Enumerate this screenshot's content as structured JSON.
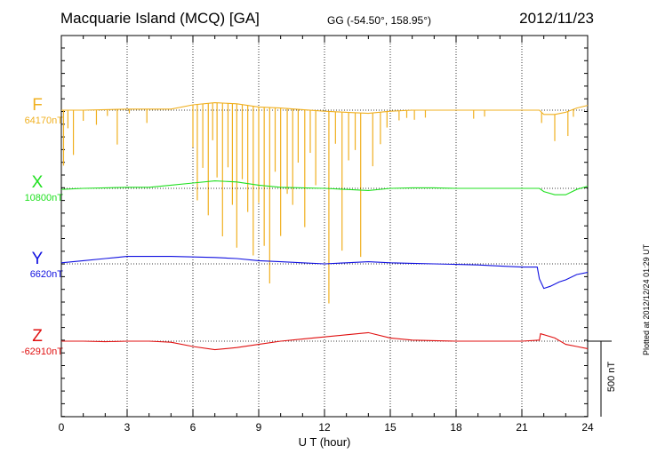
{
  "header": {
    "station": "Macquarie Island (MCQ)  [GA]",
    "coords": "GG (-54.50°, 158.95°)",
    "date": "2012/11/23",
    "plotted": "Plotted at 2012/12/24 01:29 UT"
  },
  "chart_data": {
    "type": "line",
    "xlabel": "U T (hour)",
    "xlim": [
      0,
      24
    ],
    "xticks": [
      0,
      3,
      6,
      9,
      12,
      15,
      18,
      21,
      24
    ],
    "x_tick_labels": [
      "0",
      "3",
      "6",
      "9",
      "12",
      "15",
      "18",
      "21",
      "24"
    ],
    "scale_bar": {
      "label": "500 nT",
      "nT": 500
    },
    "grid": true,
    "series": [
      {
        "name": "F",
        "baseline_label": "64170nT",
        "baseline_nT": 64170,
        "color": "#f0b020",
        "x": [
          0,
          1,
          2,
          3,
          4,
          5,
          6,
          7,
          8,
          9,
          10,
          11,
          12,
          13,
          14,
          15,
          16,
          17,
          18,
          19,
          20,
          21,
          21.8,
          22,
          22.5,
          23,
          23.5,
          24
        ],
        "y": [
          64170,
          64170,
          64175,
          64180,
          64180,
          64180,
          64220,
          64240,
          64230,
          64200,
          64190,
          64175,
          64160,
          64150,
          64140,
          64160,
          64170,
          64170,
          64170,
          64170,
          64170,
          64170,
          64170,
          64130,
          64130,
          64150,
          64190,
          64215
        ],
        "spikes": [
          {
            "x": 0.1,
            "depth": 520
          },
          {
            "x": 0.3,
            "depth": 170
          },
          {
            "x": 0.55,
            "depth": 420
          },
          {
            "x": 1.0,
            "depth": 100
          },
          {
            "x": 1.6,
            "depth": 140
          },
          {
            "x": 2.1,
            "depth": 60
          },
          {
            "x": 2.55,
            "depth": 330
          },
          {
            "x": 3.1,
            "depth": 40
          },
          {
            "x": 3.9,
            "depth": 130
          },
          {
            "x": 6.0,
            "depth": 400
          },
          {
            "x": 6.2,
            "depth": 900
          },
          {
            "x": 6.45,
            "depth": 600
          },
          {
            "x": 6.7,
            "depth": 1050
          },
          {
            "x": 6.9,
            "depth": 350
          },
          {
            "x": 7.1,
            "depth": 700
          },
          {
            "x": 7.35,
            "depth": 1250
          },
          {
            "x": 7.6,
            "depth": 600
          },
          {
            "x": 7.8,
            "depth": 950
          },
          {
            "x": 8.0,
            "depth": 1350
          },
          {
            "x": 8.25,
            "depth": 700
          },
          {
            "x": 8.5,
            "depth": 1000
          },
          {
            "x": 8.75,
            "depth": 1400
          },
          {
            "x": 9.0,
            "depth": 900
          },
          {
            "x": 9.25,
            "depth": 1300
          },
          {
            "x": 9.5,
            "depth": 1650
          },
          {
            "x": 9.75,
            "depth": 600
          },
          {
            "x": 10.0,
            "depth": 1200
          },
          {
            "x": 10.3,
            "depth": 800
          },
          {
            "x": 10.55,
            "depth": 900
          },
          {
            "x": 10.8,
            "depth": 500
          },
          {
            "x": 11.1,
            "depth": 1100
          },
          {
            "x": 11.35,
            "depth": 400
          },
          {
            "x": 11.6,
            "depth": 700
          },
          {
            "x": 12.2,
            "depth": 1800
          },
          {
            "x": 12.5,
            "depth": 300
          },
          {
            "x": 12.8,
            "depth": 1300
          },
          {
            "x": 13.1,
            "depth": 450
          },
          {
            "x": 13.4,
            "depth": 350
          },
          {
            "x": 13.65,
            "depth": 1350
          },
          {
            "x": 14.2,
            "depth": 500
          },
          {
            "x": 14.55,
            "depth": 300
          },
          {
            "x": 14.85,
            "depth": 150
          },
          {
            "x": 15.4,
            "depth": 90
          },
          {
            "x": 15.75,
            "depth": 70
          },
          {
            "x": 16.1,
            "depth": 90
          },
          {
            "x": 16.6,
            "depth": 70
          },
          {
            "x": 18.8,
            "depth": 80
          },
          {
            "x": 19.3,
            "depth": 60
          },
          {
            "x": 21.9,
            "depth": 100
          },
          {
            "x": 22.5,
            "depth": 250
          },
          {
            "x": 23.1,
            "depth": 230
          },
          {
            "x": 23.35,
            "depth": 70
          }
        ]
      },
      {
        "name": "X",
        "baseline_label": "10800nT",
        "baseline_nT": 10800,
        "color": "#20e020",
        "x": [
          0,
          1,
          2,
          3,
          4,
          5,
          6,
          7,
          8,
          9,
          10,
          11,
          12,
          13,
          14,
          15,
          16,
          17,
          18,
          19,
          20,
          21,
          21.8,
          22,
          22.5,
          23,
          23.5,
          24
        ],
        "y": [
          10790,
          10800,
          10805,
          10810,
          10810,
          10830,
          10850,
          10870,
          10860,
          10830,
          10810,
          10805,
          10800,
          10790,
          10780,
          10800,
          10805,
          10805,
          10800,
          10800,
          10800,
          10800,
          10800,
          10770,
          10740,
          10740,
          10790,
          10820
        ],
        "spikes": []
      },
      {
        "name": "Y",
        "baseline_label": "6620nT",
        "baseline_nT": 6620,
        "color": "#1010e0",
        "x": [
          0,
          1,
          2,
          3,
          4,
          5,
          6,
          7,
          8,
          9,
          10,
          11,
          12,
          13,
          14,
          15,
          16,
          17,
          18,
          19,
          20,
          21,
          21.7,
          21.8,
          22.0,
          22.3,
          22.7,
          23,
          23.5,
          24
        ],
        "y": [
          6630,
          6650,
          6670,
          6690,
          6690,
          6690,
          6685,
          6680,
          6670,
          6650,
          6640,
          6630,
          6620,
          6630,
          6640,
          6630,
          6625,
          6620,
          6615,
          6610,
          6600,
          6590,
          6590,
          6480,
          6390,
          6410,
          6450,
          6470,
          6520,
          6540
        ],
        "spikes": []
      },
      {
        "name": "Z",
        "baseline_label": "-62910nT",
        "baseline_nT": -62910,
        "color": "#e01010",
        "x": [
          0,
          1,
          2,
          3,
          4,
          5,
          6,
          7,
          8,
          9,
          10,
          11,
          12,
          13,
          14,
          15,
          16,
          17,
          18,
          19,
          20,
          21,
          21.8,
          21.85,
          22.5,
          23,
          23.5,
          24
        ],
        "y": [
          -62910,
          -62910,
          -62915,
          -62910,
          -62910,
          -62920,
          -62960,
          -62990,
          -62970,
          -62940,
          -62910,
          -62890,
          -62870,
          -62850,
          -62830,
          -62880,
          -62900,
          -62905,
          -62910,
          -62910,
          -62910,
          -62910,
          -62900,
          -62840,
          -62880,
          -62940,
          -62960,
          -62980
        ],
        "spikes": []
      }
    ]
  }
}
